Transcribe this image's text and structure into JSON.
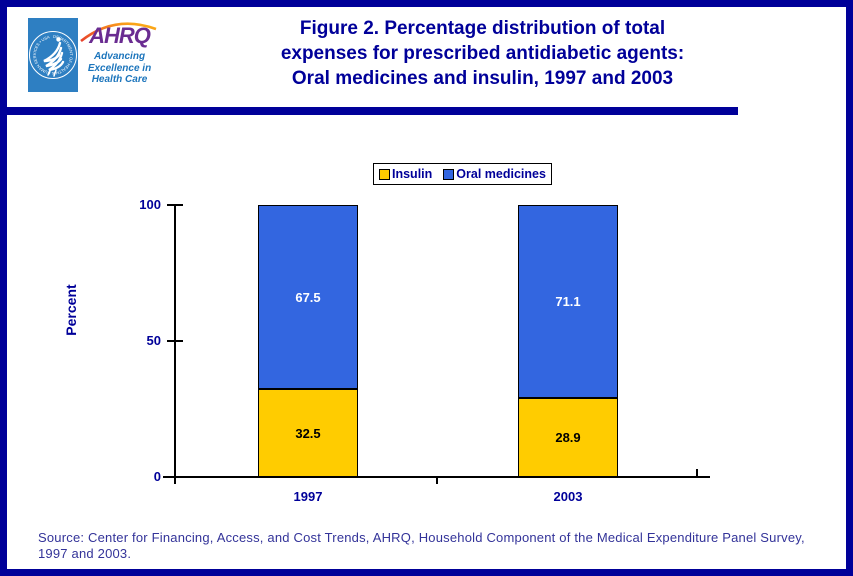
{
  "header": {
    "logo": {
      "seal_text": "DEPARTMENT OF HEALTH & HUMAN SERVICES • USA",
      "ahrq": "AHRQ",
      "tagline_lines": [
        "Advancing",
        "Excellence in",
        "Health Care"
      ]
    },
    "title_lines": [
      "Figure 2. Percentage distribution of total",
      "expenses for prescribed antidiabetic agents:",
      "Oral medicines and insulin, 1997 and 2003"
    ]
  },
  "chart_data": {
    "type": "bar",
    "stacked": true,
    "title": "Figure 2. Percentage distribution of total expenses for prescribed antidiabetic agents: Oral medicines and insulin, 1997 and 2003",
    "categories": [
      "1997",
      "2003"
    ],
    "series": [
      {
        "name": "Insulin",
        "values": [
          32.5,
          28.9
        ],
        "color": "#FFCC00",
        "label_color": "#000000"
      },
      {
        "name": "Oral medicines",
        "values": [
          67.5,
          71.1
        ],
        "color": "#3366E0",
        "label_color": "#FFFFFF"
      }
    ],
    "xlabel": "",
    "ylabel": "Percent",
    "ylim": [
      0,
      100
    ],
    "yticks": [
      0,
      50,
      100
    ],
    "grid": false,
    "legend_position": "top-center"
  },
  "source_lines": [
    "Source: Center for Financing, Access, and Cost Trends, AHRQ, Household Component of the Medical Expenditure Panel Survey,",
    "1997 and 2003."
  ],
  "colors": {
    "navy": "#000099",
    "title_text": "#000099",
    "source_text": "#333399",
    "axis": "#000000",
    "insulin": "#FFCC00",
    "oral_medicines": "#3366E0"
  }
}
